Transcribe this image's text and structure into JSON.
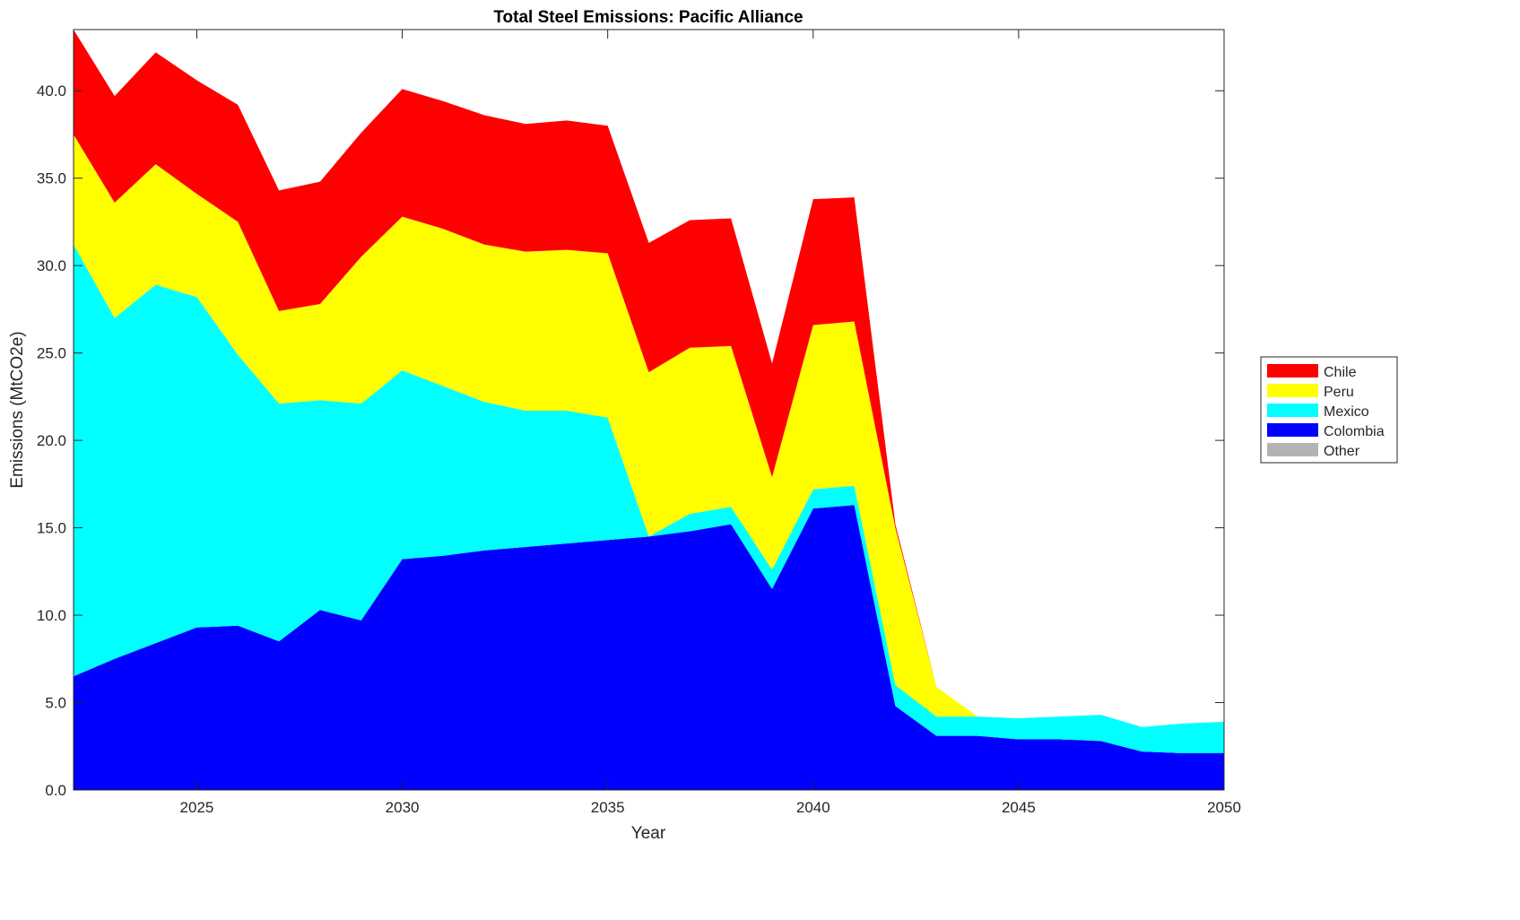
{
  "chart_data": {
    "type": "area",
    "stacked": true,
    "title": "Total Steel Emissions: Pacific Alliance",
    "xlabel": "Year",
    "ylabel": "Emissions (MtCO2e)",
    "xlim": [
      2022,
      2050
    ],
    "ylim": [
      0,
      43.5
    ],
    "xticks": [
      2025,
      2030,
      2035,
      2040,
      2045,
      2050
    ],
    "yticks": [
      "0.0",
      "5.0",
      "10.0",
      "15.0",
      "20.0",
      "25.0",
      "30.0",
      "35.0",
      "40.0"
    ],
    "grid": false,
    "legend_placement": "right-outside",
    "x": [
      2022,
      2023,
      2024,
      2025,
      2026,
      2027,
      2028,
      2029,
      2030,
      2031,
      2032,
      2033,
      2034,
      2035,
      2036,
      2037,
      2038,
      2039,
      2040,
      2041,
      2042,
      2043,
      2044,
      2045,
      2046,
      2047,
      2048,
      2049,
      2050
    ],
    "series": [
      {
        "name": "Other",
        "color": "#b3b3b3",
        "values": [
          0,
          0,
          0,
          0,
          0,
          0,
          0,
          0,
          0,
          0,
          0,
          0,
          0,
          0,
          0,
          0,
          0,
          0,
          0,
          0,
          0,
          0,
          0,
          0,
          0,
          0,
          0,
          0,
          0
        ]
      },
      {
        "name": "Colombia",
        "color": "#0000ff",
        "values": [
          6.5,
          7.5,
          8.4,
          9.3,
          9.4,
          8.5,
          10.3,
          9.7,
          13.2,
          13.4,
          13.7,
          13.9,
          14.1,
          14.3,
          14.5,
          14.8,
          15.2,
          11.5,
          16.1,
          16.3,
          4.8,
          3.1,
          3.1,
          2.9,
          2.9,
          2.8,
          2.2,
          2.1,
          2.1
        ]
      },
      {
        "name": "Mexico",
        "color": "#00ffff",
        "values": [
          24.7,
          19.5,
          20.5,
          18.9,
          15.5,
          13.6,
          12.0,
          12.4,
          10.8,
          9.7,
          8.5,
          7.8,
          7.6,
          7.0,
          0.0,
          1.0,
          1.0,
          1.1,
          1.1,
          1.1,
          1.2,
          1.1,
          1.1,
          1.2,
          1.3,
          1.5,
          1.4,
          1.7,
          1.8
        ]
      },
      {
        "name": "Peru",
        "color": "#ffff00",
        "values": [
          6.3,
          6.6,
          6.9,
          5.9,
          7.6,
          5.3,
          5.5,
          8.4,
          8.8,
          9.0,
          9.0,
          9.1,
          9.2,
          9.4,
          9.4,
          9.5,
          9.2,
          5.3,
          9.4,
          9.4,
          9.0,
          1.7,
          0,
          0,
          0,
          0,
          0,
          0,
          0
        ]
      },
      {
        "name": "Chile",
        "color": "#ff0000",
        "values": [
          6.0,
          6.1,
          6.4,
          6.5,
          6.7,
          6.9,
          7.0,
          7.1,
          7.3,
          7.3,
          7.4,
          7.3,
          7.4,
          7.3,
          7.4,
          7.3,
          7.3,
          6.5,
          7.2,
          7.1,
          0.2,
          0,
          0,
          0,
          0,
          0,
          0,
          0,
          0
        ]
      }
    ],
    "legend_order": [
      "Chile",
      "Peru",
      "Mexico",
      "Colombia",
      "Other"
    ]
  }
}
